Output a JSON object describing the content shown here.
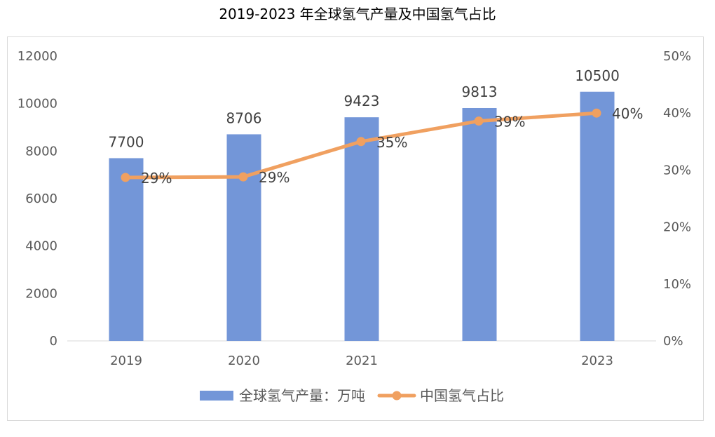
{
  "title": "2019-2023 年全球氢气产量及中国氢气占比",
  "colors": {
    "bar": "#7396d8",
    "line": "#f0a060",
    "axis": "#d9d9d9",
    "text": "#595959"
  },
  "chart_data": {
    "type": "bar",
    "title": "2019-2023 年全球氢气产量及中国氢气占比",
    "categories": [
      "2019",
      "2020",
      "2021",
      "",
      "2023"
    ],
    "series": [
      {
        "name": "全球氢气产量：万吨",
        "type": "bar",
        "axis": "left",
        "values": [
          7700,
          8706,
          9423,
          9813,
          10500
        ],
        "labels": [
          "7700",
          "8706",
          "9423",
          "9813",
          "10500"
        ]
      },
      {
        "name": "中国氢气占比",
        "type": "line",
        "axis": "right",
        "values": [
          0.287,
          0.288,
          0.35,
          0.386,
          0.4
        ],
        "labels": [
          "29%",
          "29%",
          "35%",
          "39%",
          "40%"
        ]
      }
    ],
    "ylim_left": [
      0,
      12000
    ],
    "yticks_left": [
      "0",
      "2000",
      "4000",
      "6000",
      "8000",
      "10000",
      "12000"
    ],
    "ylim_right": [
      0,
      0.5
    ],
    "yticks_right": [
      "0%",
      "10%",
      "20%",
      "30%",
      "40%",
      "50%"
    ],
    "grid": false,
    "legend": "bottom"
  }
}
